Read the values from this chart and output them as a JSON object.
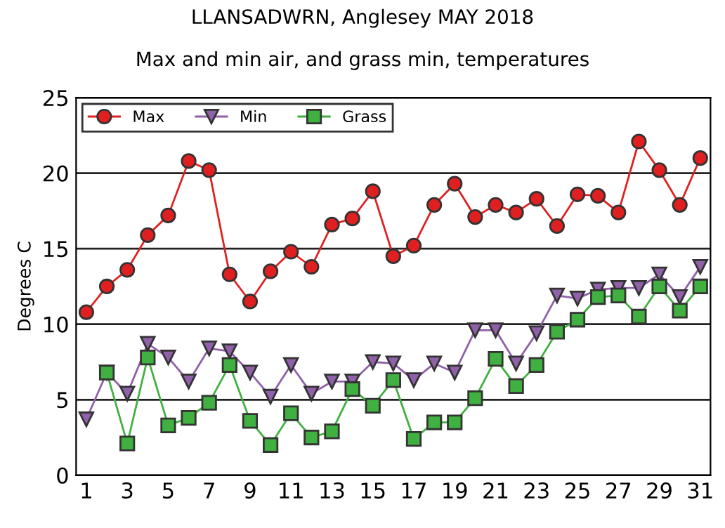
{
  "chart_data": {
    "type": "line",
    "title": "LLANSADWRN, Anglesey MAY 2018",
    "subtitle": "Max and min air, and grass min, temperatures",
    "ylabel": "Degrees C",
    "x": [
      1,
      2,
      3,
      4,
      5,
      6,
      7,
      8,
      9,
      10,
      11,
      12,
      13,
      14,
      15,
      16,
      17,
      18,
      19,
      20,
      21,
      22,
      23,
      24,
      25,
      26,
      27,
      28,
      29,
      30,
      31
    ],
    "series": [
      {
        "name": "Max",
        "color": "#e02020",
        "marker": "circle",
        "values": [
          10.8,
          12.5,
          13.6,
          15.9,
          17.2,
          20.8,
          20.2,
          13.3,
          11.5,
          13.5,
          14.8,
          13.8,
          16.6,
          17.0,
          18.8,
          14.5,
          15.2,
          17.9,
          19.3,
          17.1,
          17.9,
          17.4,
          18.3,
          16.5,
          18.6,
          18.5,
          17.4,
          22.1,
          20.2,
          17.9,
          21.0
        ]
      },
      {
        "name": "Min",
        "color": "#9060a8",
        "marker": "triangle",
        "values": [
          3.7,
          6.8,
          5.4,
          8.7,
          7.8,
          6.2,
          8.4,
          8.2,
          6.8,
          5.2,
          7.3,
          5.4,
          6.2,
          6.2,
          7.5,
          7.4,
          6.3,
          7.4,
          6.8,
          9.6,
          9.6,
          7.4,
          9.4,
          11.9,
          11.7,
          12.3,
          12.4,
          12.4,
          13.3,
          11.8,
          13.8
        ]
      },
      {
        "name": "Grass",
        "color": "#40b040",
        "marker": "square",
        "values": [
          null,
          6.8,
          2.1,
          7.8,
          3.3,
          3.8,
          4.8,
          7.3,
          3.6,
          2.0,
          4.1,
          2.5,
          2.9,
          5.7,
          4.6,
          6.3,
          2.4,
          3.5,
          3.5,
          5.1,
          7.7,
          5.9,
          7.3,
          9.5,
          10.3,
          11.8,
          11.9,
          10.5,
          12.5,
          10.9,
          12.5
        ]
      }
    ],
    "xlim": [
      0.5,
      31.5
    ],
    "xticks": [
      1,
      3,
      5,
      7,
      9,
      11,
      13,
      15,
      17,
      19,
      21,
      23,
      25,
      27,
      29,
      31
    ],
    "ylim": [
      0,
      25
    ],
    "yticks": [
      0,
      5,
      10,
      15,
      20,
      25
    ],
    "grid": "y",
    "legend": "top left",
    "line_style": "solid"
  }
}
